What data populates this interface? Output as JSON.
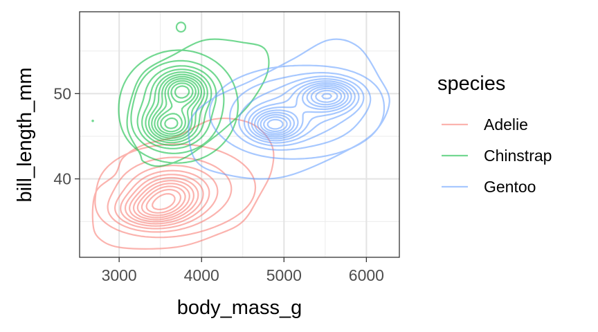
{
  "chart_data": {
    "type": "contour",
    "xlabel": "body_mass_g",
    "ylabel": "bill_length_mm",
    "xlim": [
      2520,
      6400
    ],
    "ylim": [
      30.8,
      59.6
    ],
    "x_ticks": [
      3000,
      4000,
      5000,
      6000
    ],
    "y_ticks": [
      40,
      50
    ],
    "x_minor": [
      2500,
      3500,
      4500,
      5500
    ],
    "y_minor": [
      35,
      45,
      55
    ],
    "grid": true,
    "legend": {
      "title": "species",
      "placement": "right"
    },
    "series": [
      {
        "name": "Adelie",
        "color": "#F8766D",
        "peaks": [
          {
            "x": 3620,
            "y": 38.2,
            "sx": 260,
            "sy": 1.5
          },
          {
            "x": 3400,
            "y": 36.2,
            "sx": 280,
            "sy": 1.3
          }
        ],
        "broad": {
          "x": 3700,
          "y": 39,
          "sx": 620,
          "sy": 3.3
        },
        "outer": [
          [
            2680,
            35
          ],
          [
            2720,
            38.5
          ],
          [
            2950,
            40.5
          ],
          [
            3050,
            42.5
          ],
          [
            3300,
            44
          ],
          [
            3700,
            45
          ],
          [
            4150,
            47
          ],
          [
            4600,
            46.5
          ],
          [
            4850,
            44
          ],
          [
            4850,
            41
          ],
          [
            4700,
            38
          ],
          [
            4500,
            35
          ],
          [
            4200,
            33.5
          ],
          [
            3700,
            32
          ],
          [
            3050,
            31.9
          ],
          [
            2760,
            33
          ]
        ]
      },
      {
        "name": "Chinstrap",
        "color": "#00BA38",
        "peaks": [
          {
            "x": 3770,
            "y": 50.4,
            "sx": 190,
            "sy": 1.4
          },
          {
            "x": 3620,
            "y": 46.3,
            "sx": 200,
            "sy": 1.4
          }
        ],
        "broad": {
          "x": 3720,
          "y": 48.5,
          "sx": 430,
          "sy": 3.9
        },
        "outer": [
          [
            3250,
            43
          ],
          [
            3100,
            46
          ],
          [
            3150,
            49.5
          ],
          [
            3300,
            52.5
          ],
          [
            3650,
            54.5
          ],
          [
            4050,
            56.3
          ],
          [
            4500,
            56
          ],
          [
            4770,
            55.2
          ],
          [
            4800,
            52.5
          ],
          [
            4600,
            49
          ],
          [
            4350,
            46.5
          ],
          [
            4100,
            44.5
          ],
          [
            3800,
            42.5
          ],
          [
            3500,
            41.5
          ],
          [
            3300,
            42
          ]
        ],
        "extras": [
          {
            "type": "ellipse",
            "x": 3750,
            "y": 57.8,
            "rx": 55,
            "ry": 0.55
          },
          {
            "type": "dot",
            "x": 2680,
            "y": 46.8
          }
        ]
      },
      {
        "name": "Gentoo",
        "color": "#619CFF",
        "peaks": [
          {
            "x": 4880,
            "y": 46.3,
            "sx": 200,
            "sy": 1.2
          },
          {
            "x": 5540,
            "y": 49.8,
            "sx": 230,
            "sy": 1.2
          }
        ],
        "broad": {
          "x": 5150,
          "y": 47.8,
          "sx": 620,
          "sy": 3.2
        },
        "outer": [
          [
            3870,
            43.5
          ],
          [
            3870,
            47
          ],
          [
            4150,
            49.5
          ],
          [
            4600,
            51.5
          ],
          [
            5100,
            54
          ],
          [
            5550,
            56.3
          ],
          [
            5900,
            55.5
          ],
          [
            6150,
            52
          ],
          [
            6280,
            49
          ],
          [
            6100,
            45.5
          ],
          [
            5700,
            43
          ],
          [
            5100,
            40.5
          ],
          [
            4700,
            40
          ],
          [
            4300,
            40.5
          ],
          [
            4000,
            41.5
          ]
        ]
      }
    ]
  }
}
